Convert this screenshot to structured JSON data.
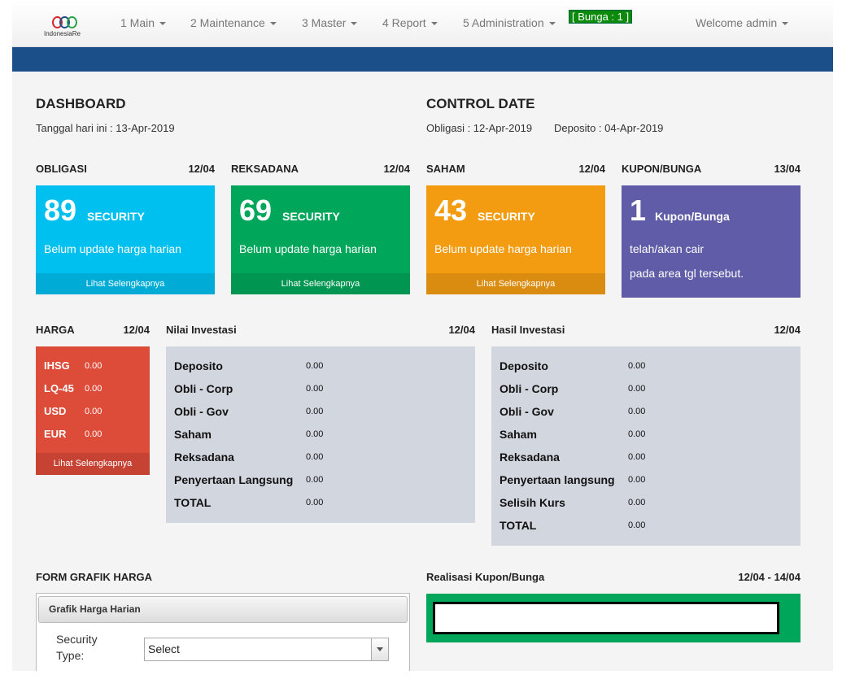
{
  "nav": {
    "logo": "IndonesiaRe",
    "menus": [
      "1 Main",
      "2 Maintenance",
      "3 Master",
      "4 Report",
      "5 Administration"
    ],
    "badge": "[ Bunga : 1 ]",
    "user": "Welcome admin"
  },
  "dashboard": {
    "title": "DASHBOARD",
    "date": "Tanggal hari ini : 13-Apr-2019"
  },
  "control": {
    "title": "CONTROL DATE",
    "obligasi": "Obligasi : 12-Apr-2019",
    "deposito": "Deposito : 04-Apr-2019"
  },
  "cards": [
    {
      "title": "OBLIGASI",
      "date": "12/04",
      "count": 89,
      "unit": "SECURITY",
      "lines": [
        "Belum update harga harian"
      ],
      "link": "Lihat Selengkapnya"
    },
    {
      "title": "REKSADANA",
      "date": "12/04",
      "count": 69,
      "unit": "SECURITY",
      "lines": [
        "Belum update harga harian"
      ],
      "link": "Lihat Selengkapnya"
    },
    {
      "title": "SAHAM",
      "date": "12/04",
      "count": 43,
      "unit": "SECURITY",
      "lines": [
        "Belum update harga harian"
      ],
      "link": "Lihat Selengkapnya"
    },
    {
      "title": "KUPON/BUNGA",
      "date": "13/04",
      "count": 1,
      "unit": "Kupon/Bunga",
      "lines": [
        "telah/akan cair",
        "pada area tgl tersebut."
      ]
    }
  ],
  "harga": {
    "title": "HARGA",
    "date": "12/04",
    "rows": [
      [
        "IHSG",
        "0.00"
      ],
      [
        "LQ-45",
        "0.00"
      ],
      [
        "USD",
        "0.00"
      ],
      [
        "EUR",
        "0.00"
      ]
    ],
    "link": "Lihat Selengkapnya"
  },
  "nilai": {
    "title": "Nilai Investasi",
    "date": "12/04",
    "rows": [
      [
        "Deposito",
        "0.00"
      ],
      [
        "Obli - Corp",
        "0.00"
      ],
      [
        "Obli - Gov",
        "0.00"
      ],
      [
        "Saham",
        "0.00"
      ],
      [
        "Reksadana",
        "0.00"
      ],
      [
        "Penyertaan Langsung",
        "0.00"
      ],
      [
        "TOTAL",
        "0.00"
      ]
    ]
  },
  "hasil": {
    "title": "Hasil Investasi",
    "date": "12/04",
    "rows": [
      [
        "Deposito",
        "0.00"
      ],
      [
        "Obli - Corp",
        "0.00"
      ],
      [
        "Obli - Gov",
        "0.00"
      ],
      [
        "Saham",
        "0.00"
      ],
      [
        "Reksadana",
        "0.00"
      ],
      [
        "Penyertaan langsung",
        "0.00"
      ],
      [
        "Selisih Kurs",
        "0.00"
      ],
      [
        "TOTAL",
        "0.00"
      ]
    ]
  },
  "form": {
    "title": "FORM GRAFIK HARGA",
    "panel": "Grafik Harga Harian",
    "label": "Security Type:",
    "select": "Select"
  },
  "realisasi": {
    "title": "Realisasi Kupon/Bunga",
    "date": "12/04 - 14/04"
  }
}
